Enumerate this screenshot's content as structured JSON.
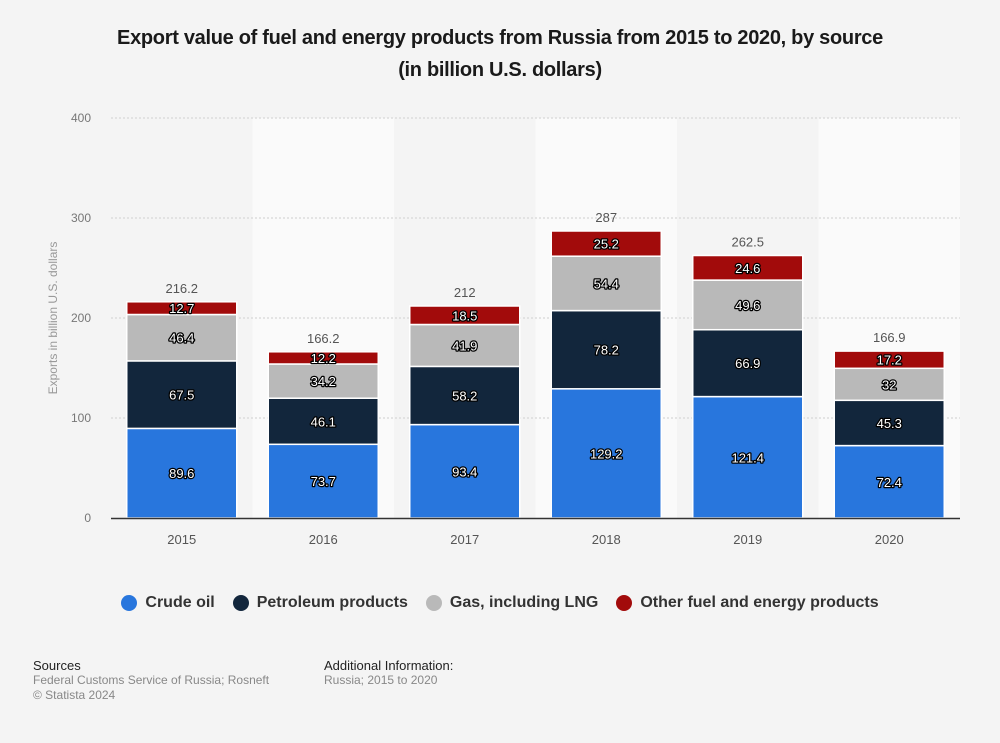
{
  "chart_data": {
    "type": "bar",
    "stacked": true,
    "title": "Export value of fuel and energy products from Russia from 2015 to 2020, by source",
    "subtitle": "(in billion U.S. dollars)",
    "xlabel": "",
    "ylabel": "Exports in billion U.S. dollars",
    "ylim": [
      0,
      400
    ],
    "yticks": [
      0,
      100,
      200,
      300,
      400
    ],
    "grid": true,
    "legend_position": "bottom",
    "categories": [
      "2015",
      "2016",
      "2017",
      "2018",
      "2019",
      "2020"
    ],
    "series": [
      {
        "name": "Crude oil",
        "color": "#2876dd",
        "values": [
          89.6,
          73.7,
          93.4,
          129.2,
          121.4,
          72.4
        ]
      },
      {
        "name": "Petroleum products",
        "color": "#12263c",
        "values": [
          67.5,
          46.1,
          58.2,
          78.2,
          66.9,
          45.3
        ]
      },
      {
        "name": "Gas, including LNG",
        "color": "#b9b9b9",
        "values": [
          46.4,
          34.2,
          41.9,
          54.4,
          49.6,
          32
        ]
      },
      {
        "name": "Other fuel and energy products",
        "color": "#a20b0b",
        "values": [
          12.7,
          12.2,
          18.5,
          25.2,
          24.6,
          17.2
        ]
      }
    ],
    "totals": [
      "216.2",
      "166.2",
      "212",
      "287",
      "262.5",
      "166.9"
    ],
    "value_labels": [
      [
        "89.6",
        "73.7",
        "93.4",
        "129.2",
        "121.4",
        "72.4"
      ],
      [
        "67.5",
        "46.1",
        "58.2",
        "78.2",
        "66.9",
        "45.3"
      ],
      [
        "46.4",
        "34.2",
        "41.9",
        "54.4",
        "49.6",
        "32"
      ],
      [
        "12.7",
        "12.2",
        "18.5",
        "25.2",
        "24.6",
        "17.2"
      ]
    ]
  },
  "title_line1": "Export value of fuel and energy products from Russia from 2015 to 2020, by source",
  "title_line2": "(in billion U.S. dollars)",
  "legend": [
    {
      "label": "Crude oil",
      "color": "#2876dd"
    },
    {
      "label": "Petroleum products",
      "color": "#12263c"
    },
    {
      "label": "Gas, including LNG",
      "color": "#b9b9b9"
    },
    {
      "label": "Other fuel and energy products",
      "color": "#a20b0b"
    }
  ],
  "footer": {
    "sources_heading": "Sources",
    "sources_text": "Federal Customs Service of Russia; Rosneft",
    "copyright": "© Statista 2024",
    "additional_heading": "Additional Information:",
    "additional_text": "Russia; 2015 to 2020"
  }
}
